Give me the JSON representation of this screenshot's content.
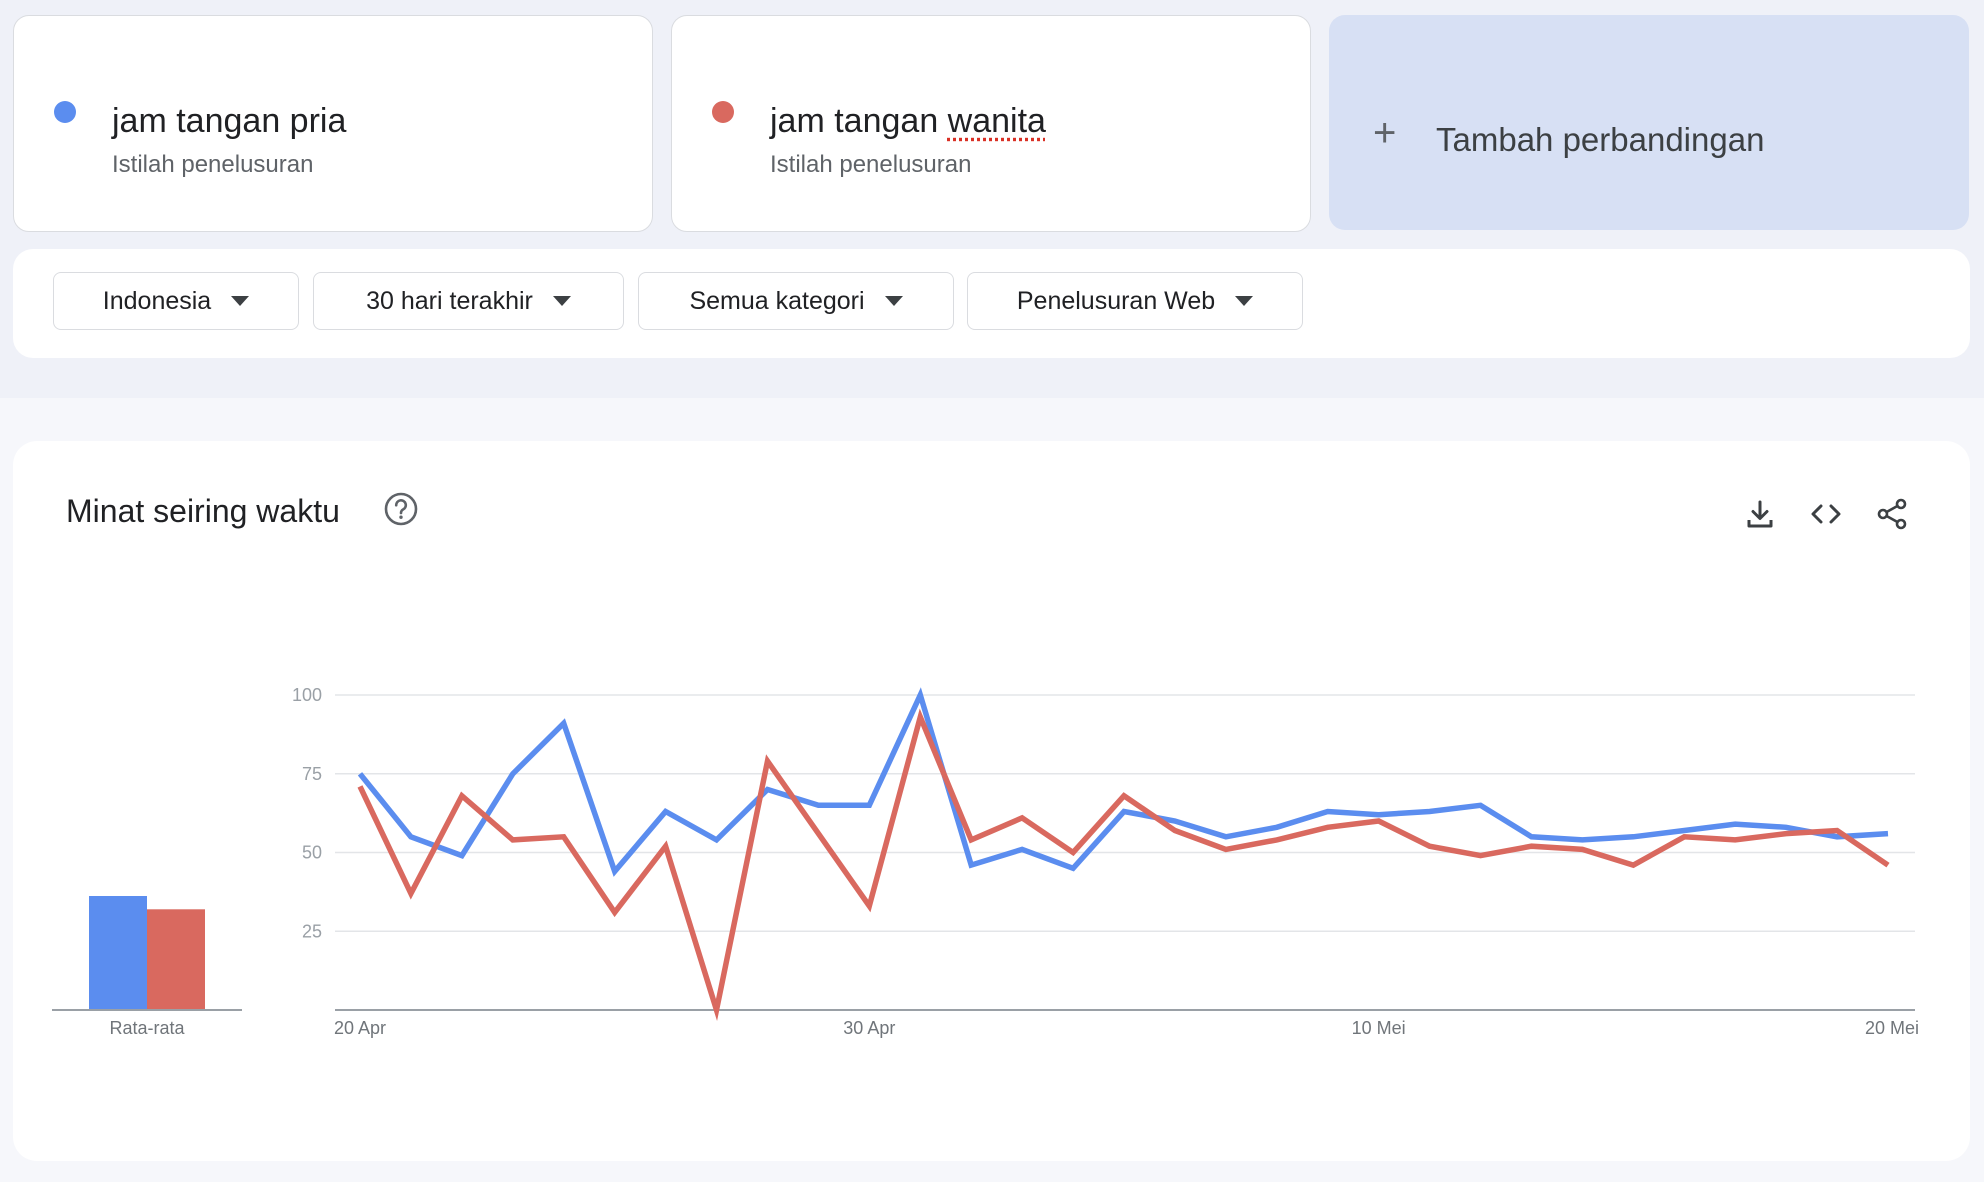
{
  "terms": [
    {
      "name": "jam tangan pria",
      "subtitle": "Istilah penelusuran",
      "color": "#5b8def"
    },
    {
      "name_prefix": "jam tangan ",
      "name_underlined": "wanita",
      "subtitle": "Istilah penelusuran",
      "color": "#d9695f"
    }
  ],
  "add_comparison": {
    "icon": "plus-icon",
    "label": "Tambah perbandingan"
  },
  "filters": [
    {
      "label": "Indonesia"
    },
    {
      "label": "30 hari terakhir"
    },
    {
      "label": "Semua kategori"
    },
    {
      "label": "Penelusuran Web"
    }
  ],
  "chart_panel": {
    "title": "Minat seiring waktu",
    "help_icon": "help-circle-icon",
    "tools": [
      "download-icon",
      "embed-code-icon",
      "share-icon"
    ]
  },
  "chart_data": [
    {
      "type": "bar",
      "categories": [
        "Rata-rata"
      ],
      "series": [
        {
          "name": "jam tangan pria",
          "values": [
            60
          ],
          "color": "#5b8def"
        },
        {
          "name": "jam tangan wanita",
          "values": [
            53
          ],
          "color": "#d9695f"
        }
      ],
      "ylim": [
        0,
        100
      ]
    },
    {
      "type": "line",
      "x_tick_labels": [
        "20 Apr",
        "30 Apr",
        "10 Mei",
        "20 Mei"
      ],
      "y_ticks": [
        25,
        50,
        75,
        100
      ],
      "ylim": [
        0,
        100
      ],
      "grid": true,
      "x": [
        "2024-04-20",
        "2024-04-21",
        "2024-04-22",
        "2024-04-23",
        "2024-04-24",
        "2024-04-25",
        "2024-04-26",
        "2024-04-27",
        "2024-04-28",
        "2024-04-29",
        "2024-04-30",
        "2024-05-01",
        "2024-05-02",
        "2024-05-03",
        "2024-05-04",
        "2024-05-05",
        "2024-05-06",
        "2024-05-07",
        "2024-05-08",
        "2024-05-09",
        "2024-05-10",
        "2024-05-11",
        "2024-05-12",
        "2024-05-13",
        "2024-05-14",
        "2024-05-15",
        "2024-05-16",
        "2024-05-17",
        "2024-05-18",
        "2024-05-19",
        "2024-05-20"
      ],
      "series": [
        {
          "name": "jam tangan pria",
          "color": "#5b8def",
          "values": [
            75,
            55,
            49,
            75,
            91,
            44,
            63,
            54,
            70,
            65,
            65,
            100,
            46,
            51,
            45,
            63,
            60,
            55,
            58,
            63,
            62,
            63,
            65,
            55,
            54,
            55,
            57,
            59,
            58,
            55,
            56
          ]
        },
        {
          "name": "jam tangan wanita",
          "color": "#d9695f",
          "values": [
            71,
            37,
            68,
            54,
            55,
            31,
            52,
            0,
            79,
            56,
            33,
            93,
            54,
            61,
            50,
            68,
            57,
            51,
            54,
            58,
            60,
            52,
            49,
            52,
            51,
            46,
            55,
            54,
            56,
            57,
            46
          ]
        }
      ]
    }
  ]
}
